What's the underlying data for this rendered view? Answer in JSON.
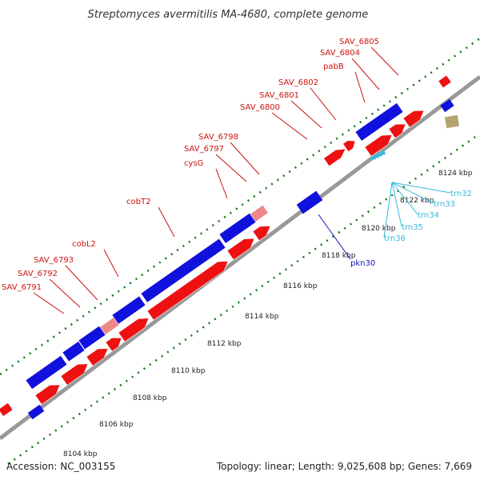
{
  "title": "Streptomyces avermitilis MA-4680, complete genome",
  "footer": {
    "accession": "Accession: NC_003155",
    "summary": "Topology: linear; Length: 9,025,608 bp; Genes: 7,669"
  },
  "colors": {
    "forward_gene": "#ee1111",
    "reverse_gene": "#1111dd",
    "pseudo_gene": "#ee8888",
    "tick": "#117711",
    "gene_label": "#cc1111",
    "trna_label": "#33bbdd",
    "other_label": "#1111bb"
  },
  "ticks": [
    {
      "label": "8104 kbp"
    },
    {
      "label": "8106 kbp"
    },
    {
      "label": "8108 kbp"
    },
    {
      "label": "8110 kbp"
    },
    {
      "label": "8112 kbp"
    },
    {
      "label": "8114 kbp"
    },
    {
      "label": "8116 kbp"
    },
    {
      "label": "8118 kbp"
    },
    {
      "label": "8120 kbp"
    },
    {
      "label": "8122 kbp"
    },
    {
      "label": "8124 kbp"
    }
  ],
  "gene_labels": [
    {
      "text": "SAV_6791"
    },
    {
      "text": "SAV_6792"
    },
    {
      "text": "SAV_6793"
    },
    {
      "text": "cobL2"
    },
    {
      "text": "cobT2"
    },
    {
      "text": "cysG"
    },
    {
      "text": "SAV_6797"
    },
    {
      "text": "SAV_6798"
    },
    {
      "text": "SAV_6800"
    },
    {
      "text": "SAV_6801"
    },
    {
      "text": "SAV_6802"
    },
    {
      "text": "pabB"
    },
    {
      "text": "SAV_6804"
    },
    {
      "text": "SAV_6805"
    }
  ],
  "trna_labels": [
    {
      "text": "trn32"
    },
    {
      "text": "trn33"
    },
    {
      "text": "trn34"
    },
    {
      "text": "trn35"
    },
    {
      "text": "trn36"
    }
  ],
  "other_labels": [
    {
      "text": "pkn30"
    }
  ]
}
